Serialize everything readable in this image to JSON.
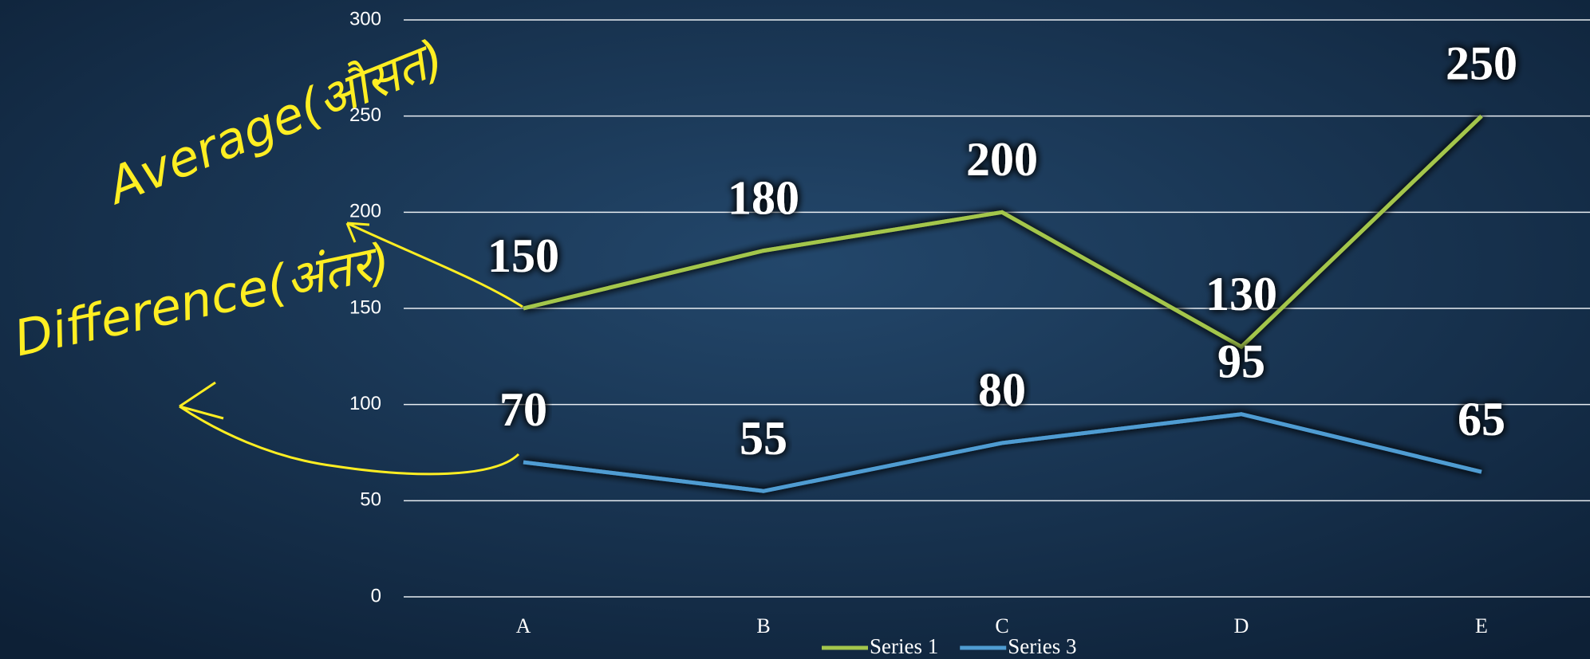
{
  "chart_data": {
    "type": "line",
    "categories": [
      "A",
      "B",
      "C",
      "D",
      "E"
    ],
    "series": [
      {
        "name": "Series 1",
        "color": "#a4c64c",
        "values": [
          150,
          180,
          200,
          130,
          250
        ]
      },
      {
        "name": "Series 3",
        "color": "#4f9cd2",
        "values": [
          70,
          55,
          80,
          95,
          65
        ]
      }
    ],
    "ylim": [
      0,
      300
    ],
    "yticks": [
      0,
      50,
      100,
      150,
      200,
      250,
      300
    ],
    "grid": true,
    "legend": "bottom",
    "annotations": [
      "Average(औसत)",
      "Difference(अंतर)"
    ]
  }
}
